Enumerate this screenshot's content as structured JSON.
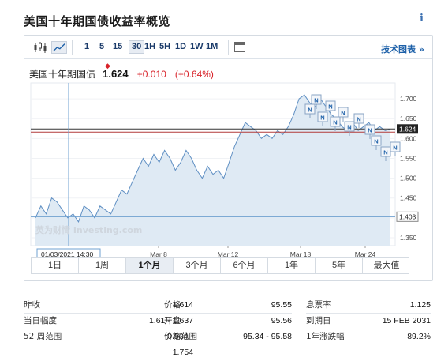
{
  "page": {
    "title": "美国十年期国债收益率概览",
    "info_icon": "i"
  },
  "toolbar": {
    "icons": [
      "candlestick-icon",
      "line-chart-icon"
    ],
    "periods": [
      "1",
      "5",
      "15",
      "30",
      "1H",
      "5H",
      "1D",
      "1W",
      "1M"
    ],
    "active_period": "30",
    "tech_chart_link": "技术图表 »"
  },
  "quote": {
    "name": "美国十年期国债",
    "price": "1.624",
    "change": "+0.010",
    "change_pct": "(+0.64%)",
    "change_color": "#d8232a"
  },
  "chart_data": {
    "type": "area",
    "x_labels": [
      "Mar 8",
      "Mar 12",
      "Mar 18",
      "Mar 24"
    ],
    "y_ticks": [
      1.35,
      1.4,
      1.45,
      1.5,
      1.55,
      1.6,
      1.65,
      1.7
    ],
    "ylim": [
      1.33,
      1.74
    ],
    "crosshair_date": "01/03/2021 14:30",
    "crosshair_value": "1.403",
    "last_value": "1.624",
    "watermark": "英为财情 Investing.com",
    "news_marker": "N",
    "news_marker_count": 12,
    "series": [
      {
        "values": [
          1.4,
          1.43,
          1.41,
          1.45,
          1.44,
          1.42,
          1.4,
          1.41,
          1.39,
          1.43,
          1.42,
          1.4,
          1.43,
          1.42,
          1.41,
          1.44,
          1.47,
          1.46,
          1.49,
          1.52,
          1.55,
          1.53,
          1.56,
          1.54,
          1.57,
          1.55,
          1.52,
          1.54,
          1.57,
          1.55,
          1.52,
          1.5,
          1.53,
          1.51,
          1.52,
          1.5,
          1.54,
          1.58,
          1.61,
          1.64,
          1.63,
          1.62,
          1.6,
          1.61,
          1.6,
          1.62,
          1.61,
          1.63,
          1.66,
          1.7,
          1.71,
          1.69,
          1.68,
          1.7,
          1.68,
          1.66,
          1.65,
          1.63,
          1.62,
          1.64,
          1.62,
          1.63,
          1.64,
          1.62,
          1.63,
          1.62,
          1.624
        ]
      }
    ],
    "line_color": "#5f8fc3",
    "fill_color": "#dfeaf4",
    "level_lines": [
      {
        "value": 1.624,
        "color": "#333333"
      },
      {
        "value": 1.616,
        "color": "#b23a3a"
      }
    ]
  },
  "range_buttons": [
    "1日",
    "1周",
    "1个月",
    "3个月",
    "6个月",
    "1年",
    "5年",
    "最大值"
  ],
  "active_range": "1个月",
  "stats": {
    "rows": [
      [
        {
          "label": "昨收",
          "value": "1.614"
        },
        {
          "label": "价格",
          "value": "95.55"
        },
        {
          "label": "息票率",
          "value": "1.125"
        }
      ],
      [
        {
          "label": "当日幅度",
          "value": "1.61 - 1.637"
        },
        {
          "label": "开盘",
          "value": "95.56"
        },
        {
          "label": "到期日",
          "value": "15 FEB 2031"
        }
      ],
      [
        {
          "label": "52 周范围",
          "value": "0.504 - 1.754"
        },
        {
          "label": "价格范围",
          "value": "95.34 - 95.58"
        },
        {
          "label": "1年涨跌幅",
          "value": "89.2%"
        }
      ]
    ]
  }
}
